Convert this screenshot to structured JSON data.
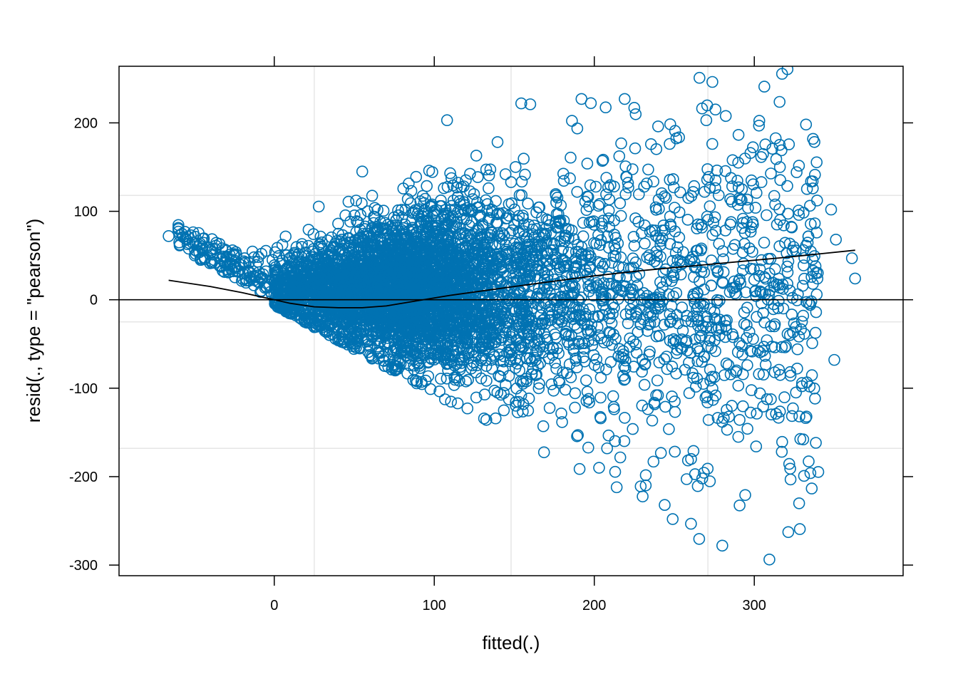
{
  "chart_data": {
    "type": "scatter",
    "title": "",
    "xlabel": "fitted(.)",
    "ylabel": "resid(., type = \"pearson\")",
    "xlim": [
      -97,
      393
    ],
    "ylim": [
      -312,
      264
    ],
    "x_ticks": [
      0,
      100,
      200,
      300
    ],
    "x_tick_labels": [
      "0",
      "100",
      "200",
      "300"
    ],
    "y_ticks": [
      -300,
      -200,
      -100,
      0,
      100,
      200
    ],
    "y_tick_labels": [
      "-300",
      "-200",
      "-100",
      "0",
      "100",
      "200"
    ],
    "grid": true,
    "grid_x": [
      25,
      148,
      271
    ],
    "grid_y": [
      118,
      -25,
      -168
    ],
    "reference_line_y": 0,
    "colors": {
      "points": "#0072B2",
      "smooth": "#000000",
      "reference": "#000000",
      "grid": "#e6e6e6",
      "frame": "#000000"
    },
    "smooth_line": {
      "x": [
        -66,
        -40,
        -20,
        -5,
        10,
        25,
        40,
        55,
        70,
        90,
        110,
        130,
        150,
        175,
        200,
        230,
        260,
        290,
        320,
        363
      ],
      "y": [
        22,
        15,
        8,
        2,
        -4,
        -8,
        -9,
        -9,
        -7,
        -1,
        5,
        10,
        15,
        21,
        27,
        33,
        38,
        43,
        48,
        56
      ]
    },
    "notable_points": [
      {
        "x": -66,
        "y": 72
      },
      {
        "x": -57,
        "y": 71
      },
      {
        "x": -53,
        "y": 64
      },
      {
        "x": -40,
        "y": 56
      },
      {
        "x": -46,
        "y": 45
      },
      {
        "x": -31,
        "y": 43
      },
      {
        "x": -8,
        "y": 52
      },
      {
        "x": 55,
        "y": 145
      },
      {
        "x": 108,
        "y": 203
      },
      {
        "x": 160,
        "y": 221
      },
      {
        "x": 192,
        "y": 227
      },
      {
        "x": 219,
        "y": 227
      },
      {
        "x": 225,
        "y": 217
      },
      {
        "x": 270,
        "y": 203
      },
      {
        "x": 317,
        "y": 169
      },
      {
        "x": 316,
        "y": 150
      },
      {
        "x": 348,
        "y": 102
      },
      {
        "x": 339,
        "y": 76
      },
      {
        "x": 351,
        "y": 68
      },
      {
        "x": 361,
        "y": 47
      },
      {
        "x": 363,
        "y": 24
      },
      {
        "x": 339,
        "y": 6
      },
      {
        "x": 350,
        "y": -68
      },
      {
        "x": 327,
        "y": -56
      },
      {
        "x": 290,
        "y": -155
      },
      {
        "x": 283,
        "y": -147
      },
      {
        "x": 280,
        "y": -138
      },
      {
        "x": 262,
        "y": -171
      },
      {
        "x": 280,
        "y": -278
      },
      {
        "x": 249,
        "y": -248
      },
      {
        "x": 244,
        "y": -232
      },
      {
        "x": 229,
        "y": -211
      },
      {
        "x": 214,
        "y": -212
      },
      {
        "x": 237,
        "y": -183
      },
      {
        "x": 203,
        "y": -190
      },
      {
        "x": 208,
        "y": -168
      }
    ]
  }
}
